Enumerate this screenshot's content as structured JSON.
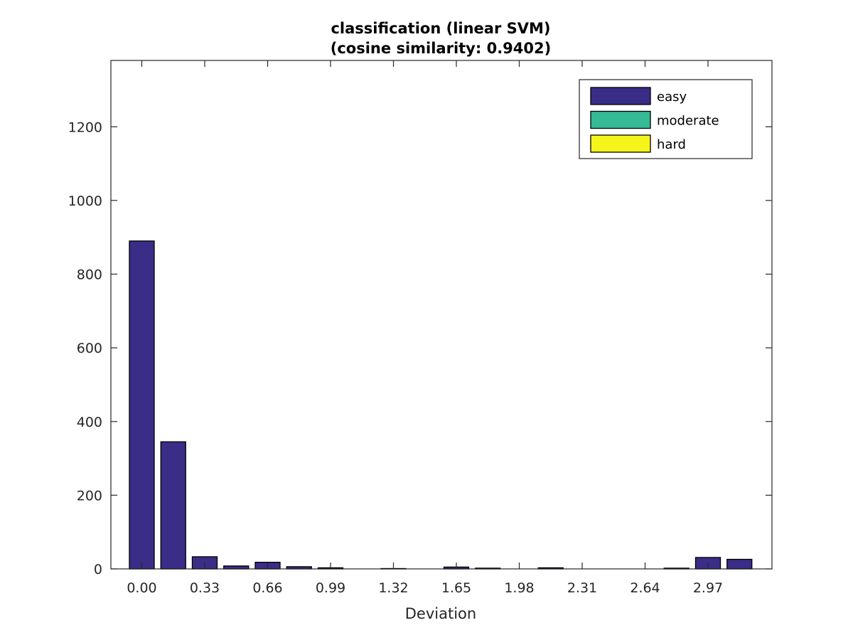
{
  "chart_data": {
    "type": "bar",
    "title": "classification (linear SVM)",
    "subtitle": "(cosine similarity: 0.9402)",
    "xlabel": "Deviation",
    "ylabel": "",
    "ylim": [
      0,
      1380
    ],
    "yticks": [
      0,
      200,
      400,
      600,
      800,
      1000,
      1200
    ],
    "xtick_labels": [
      "0.00",
      "0.33",
      "0.66",
      "0.99",
      "1.32",
      "1.65",
      "1.98",
      "2.31",
      "2.64",
      "2.97"
    ],
    "grid": false,
    "legend_position": "top-right",
    "categories": [
      "0.00",
      "0.165",
      "0.33",
      "0.495",
      "0.66",
      "0.825",
      "0.99",
      "1.155",
      "1.32",
      "1.485",
      "1.65",
      "1.815",
      "1.98",
      "2.145",
      "2.31",
      "2.475",
      "2.64",
      "2.805",
      "2.97",
      "3.135"
    ],
    "series": [
      {
        "name": "easy",
        "color": "#3a2d87",
        "values": [
          890,
          345,
          33,
          8,
          18,
          6,
          3,
          0,
          1,
          0,
          5,
          2,
          0,
          3,
          0,
          0,
          0,
          2,
          31,
          26
        ]
      },
      {
        "name": "moderate",
        "color": "#36b995",
        "values": [
          0,
          0,
          0,
          0,
          0,
          0,
          0,
          0,
          0,
          0,
          0,
          0,
          0,
          0,
          0,
          0,
          0,
          0,
          0,
          0
        ]
      },
      {
        "name": "hard",
        "color": "#f5f51c",
        "values": [
          0,
          0,
          0,
          0,
          0,
          0,
          0,
          0,
          0,
          0,
          0,
          0,
          0,
          0,
          0,
          0,
          0,
          0,
          0,
          0
        ]
      }
    ]
  }
}
